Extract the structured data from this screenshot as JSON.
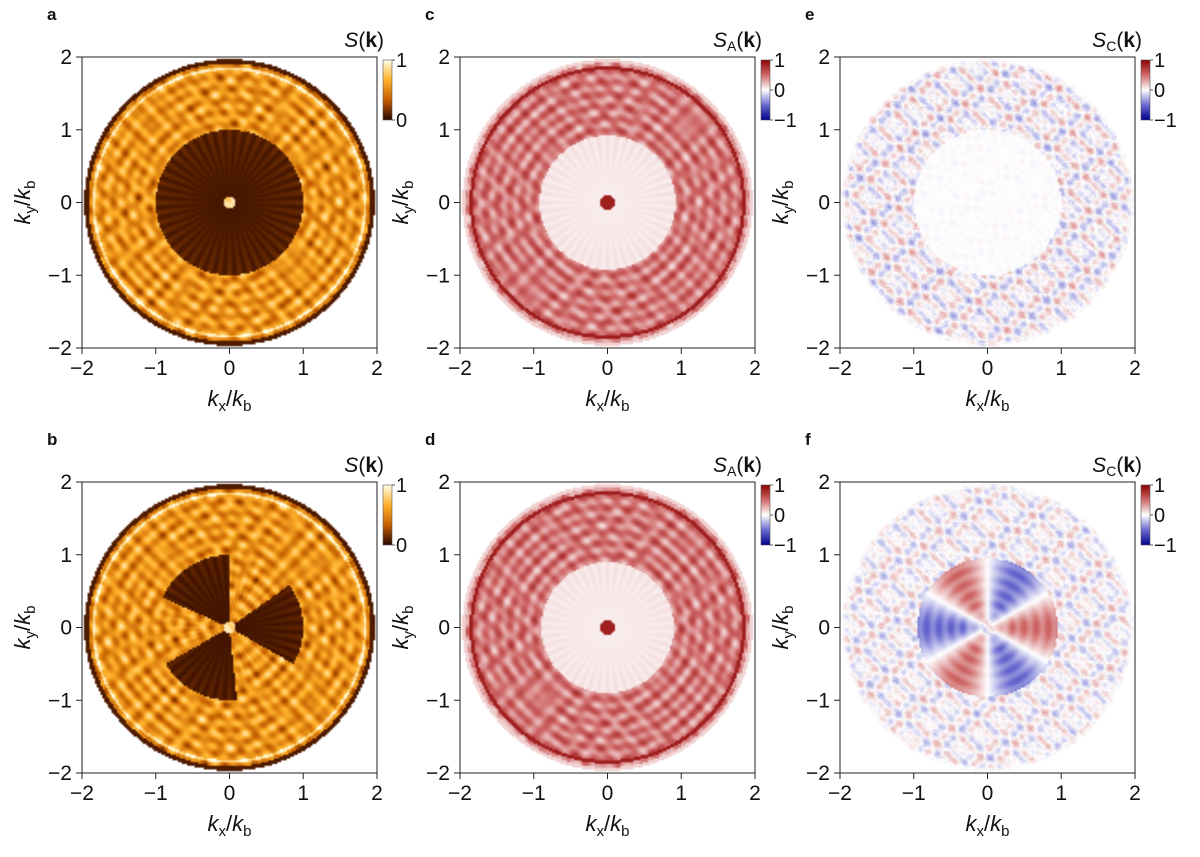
{
  "chart_data": [
    {
      "type": "heatmap",
      "letter": "a",
      "title": "S(k)",
      "title_base": "S",
      "title_sub": "",
      "xlabel": "kx/kb",
      "ylabel": "ky/kb",
      "xlim": [
        -2,
        2
      ],
      "ylim": [
        -2,
        2
      ],
      "xticks": [
        -2,
        -1,
        0,
        1,
        2
      ],
      "yticks": [
        -2,
        -1,
        0,
        1,
        2
      ],
      "xtick_labels": [
        "−2",
        "−1",
        "0",
        "1",
        "2"
      ],
      "ytick_labels": [
        "−2",
        "−1",
        "0",
        "1",
        "2"
      ],
      "colormap": "afmhot",
      "colorbar_range": [
        0,
        1
      ],
      "colorbar_ticks": [
        "1",
        "0"
      ],
      "colorbar_colors": [
        "#fffde4",
        "#ffb12a",
        "#c45f00",
        "#2a0600"
      ],
      "pattern": "single-hole",
      "hole_radius": 1.0,
      "outer_radius": 1.97
    },
    {
      "type": "heatmap",
      "letter": "b",
      "title": "S(k)",
      "title_base": "S",
      "title_sub": "",
      "xlabel": "kx/kb",
      "ylabel": "ky/kb",
      "xlim": [
        -2,
        2
      ],
      "ylim": [
        -2,
        2
      ],
      "xticks": [
        -2,
        -1,
        0,
        1,
        2
      ],
      "yticks": [
        -2,
        -1,
        0,
        1,
        2
      ],
      "xtick_labels": [
        "−2",
        "−1",
        "0",
        "1",
        "2"
      ],
      "ytick_labels": [
        "−2",
        "−1",
        "0",
        "1",
        "2"
      ],
      "colormap": "afmhot",
      "colorbar_range": [
        0,
        1
      ],
      "colorbar_ticks": [
        "1",
        "0"
      ],
      "colorbar_colors": [
        "#fffde4",
        "#ffb12a",
        "#c45f00",
        "#2a0600"
      ],
      "pattern": "three-lobe",
      "hole_radius": 1.0,
      "outer_radius": 1.97
    },
    {
      "type": "heatmap",
      "letter": "c",
      "title": "SA(k)",
      "title_base": "S",
      "title_sub": "A",
      "xlabel": "kx/kb",
      "ylabel": "ky/kb",
      "xlim": [
        -2,
        2
      ],
      "ylim": [
        -2,
        2
      ],
      "xticks": [
        -2,
        -1,
        0,
        1,
        2
      ],
      "yticks": [
        -2,
        -1,
        0,
        1,
        2
      ],
      "xtick_labels": [
        "−2",
        "−1",
        "0",
        "1",
        "2"
      ],
      "ytick_labels": [
        "−2",
        "−1",
        "0",
        "1",
        "2"
      ],
      "colormap": "seismic",
      "colorbar_range": [
        -1,
        1
      ],
      "colorbar_ticks": [
        "1",
        "0",
        "−1"
      ],
      "colorbar_colors": [
        "#8b0000",
        "#d06a6a",
        "#ffffff",
        "#6a6ad0",
        "#00008b"
      ],
      "pattern": "ring-red",
      "hole_radius": 0.92,
      "outer_radius": 1.97
    },
    {
      "type": "heatmap",
      "letter": "d",
      "title": "SA(k)",
      "title_base": "S",
      "title_sub": "A",
      "xlabel": "kx/kb",
      "ylabel": "ky/kb",
      "xlim": [
        -2,
        2
      ],
      "ylim": [
        -2,
        2
      ],
      "xticks": [
        -2,
        -1,
        0,
        1,
        2
      ],
      "yticks": [
        -2,
        -1,
        0,
        1,
        2
      ],
      "xtick_labels": [
        "−2",
        "−1",
        "0",
        "1",
        "2"
      ],
      "ytick_labels": [
        "−2",
        "−1",
        "0",
        "1",
        "2"
      ],
      "colormap": "seismic",
      "colorbar_range": [
        -1,
        1
      ],
      "colorbar_ticks": [
        "1",
        "0",
        "−1"
      ],
      "colorbar_colors": [
        "#8b0000",
        "#d06a6a",
        "#ffffff",
        "#6a6ad0",
        "#00008b"
      ],
      "pattern": "ring-red-soft",
      "hole_radius": 0.9,
      "outer_radius": 1.97
    },
    {
      "type": "heatmap",
      "letter": "e",
      "title": "SC(k)",
      "title_base": "S",
      "title_sub": "C",
      "xlabel": "kx/kb",
      "ylabel": "ky/kb",
      "xlim": [
        -2,
        2
      ],
      "ylim": [
        -2,
        2
      ],
      "xticks": [
        -2,
        -1,
        0,
        1,
        2
      ],
      "yticks": [
        -2,
        -1,
        0,
        1,
        2
      ],
      "xtick_labels": [
        "−2",
        "−1",
        "0",
        "1",
        "2"
      ],
      "ytick_labels": [
        "−2",
        "−1",
        "0",
        "1",
        "2"
      ],
      "colormap": "seismic",
      "colorbar_range": [
        -1,
        1
      ],
      "colorbar_ticks": [
        "1",
        "0",
        "−1"
      ],
      "colorbar_colors": [
        "#8b0000",
        "#d06a6a",
        "#ffffff",
        "#6a6ad0",
        "#00008b"
      ],
      "pattern": "noise-diverging",
      "hole_radius": 1.0,
      "outer_radius": 1.97
    },
    {
      "type": "heatmap",
      "letter": "f",
      "title": "SC(k)",
      "title_base": "S",
      "title_sub": "C",
      "xlabel": "kx/kb",
      "ylabel": "ky/kb",
      "xlim": [
        -2,
        2
      ],
      "ylim": [
        -2,
        2
      ],
      "xticks": [
        -2,
        -1,
        0,
        1,
        2
      ],
      "yticks": [
        -2,
        -1,
        0,
        1,
        2
      ],
      "xtick_labels": [
        "−2",
        "−1",
        "0",
        "1",
        "2"
      ],
      "ytick_labels": [
        "−2",
        "−1",
        "0",
        "1",
        "2"
      ],
      "colormap": "seismic",
      "colorbar_range": [
        -1,
        1
      ],
      "colorbar_ticks": [
        "1",
        "0",
        "−1"
      ],
      "colorbar_colors": [
        "#8b0000",
        "#d06a6a",
        "#ffffff",
        "#6a6ad0",
        "#00008b"
      ],
      "pattern": "six-sector-diverging",
      "hole_radius": 0.95,
      "outer_radius": 1.97
    }
  ]
}
